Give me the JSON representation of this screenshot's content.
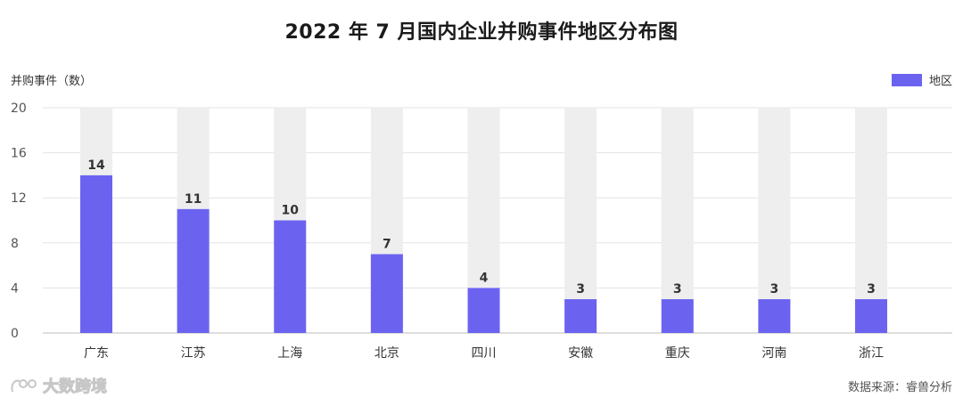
{
  "chart_data": {
    "type": "bar",
    "title": "2022 年 7 月国内企业并购事件地区分布图",
    "ylabel": "并购事件（数）",
    "xlabel": "",
    "legend": [
      "地区"
    ],
    "legend_position": "top-right",
    "grid": true,
    "ylim": [
      0,
      20
    ],
    "yticks": [
      0,
      4,
      8,
      12,
      16,
      20
    ],
    "categories": [
      "广东",
      "江苏",
      "上海",
      "北京",
      "四川",
      "安徽",
      "重庆",
      "河南",
      "浙江"
    ],
    "series": [
      {
        "name": "地区",
        "values": [
          14,
          11,
          10,
          7,
          4,
          3,
          3,
          3,
          3
        ]
      }
    ],
    "background_bar_value": 20
  },
  "colors": {
    "bar": "#6b63f0",
    "background_bar": "#eeeeee",
    "grid": "#e3e3e3",
    "axis": "#bdbdbd"
  },
  "source": "数据来源：睿兽分析",
  "watermark": "大数跨境"
}
